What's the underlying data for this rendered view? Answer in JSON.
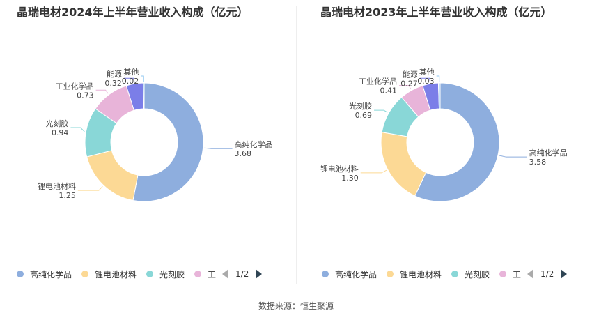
{
  "charts": [
    {
      "title": "晶瑞电材2024年上半年营业收入构成（亿元）",
      "page": "1/2"
    },
    {
      "title": "晶瑞电材2023年上半年营业收入构成（亿元）",
      "page": "1/2"
    }
  ],
  "legend": [
    "高纯化学品",
    "锂电池材料",
    "光刻胶",
    "工"
  ],
  "source": "数据来源：恒生聚源",
  "colors": {
    "高纯化学品": "#8eaede",
    "锂电池材料": "#fcd995",
    "光刻胶": "#89d7d7",
    "工业化学品": "#e8b4d9",
    "能源": "#7b7ee8",
    "其他": "#8fc7f0"
  },
  "chart_data": [
    {
      "type": "pie",
      "title": "晶瑞电材2024年上半年营业收入构成（亿元）",
      "categories": [
        "高纯化学品",
        "锂电池材料",
        "光刻胶",
        "工业化学品",
        "能源",
        "其他"
      ],
      "values": [
        3.68,
        1.25,
        0.94,
        0.73,
        0.32,
        0.02
      ],
      "value_labels": [
        "3.68",
        "1.25",
        "0.94",
        "0.73",
        "0.32",
        "0.02"
      ],
      "legend_position": "bottom"
    },
    {
      "type": "pie",
      "title": "晶瑞电材2023年上半年营业收入构成（亿元）",
      "categories": [
        "高纯化学品",
        "锂电池材料",
        "光刻胶",
        "工业化学品",
        "能源",
        "其他"
      ],
      "values": [
        3.58,
        1.3,
        0.69,
        0.41,
        0.27,
        0.03
      ],
      "value_labels": [
        "3.58",
        "1.30",
        "0.69",
        "0.41",
        "0.27",
        "0.03"
      ],
      "legend_position": "bottom"
    }
  ]
}
